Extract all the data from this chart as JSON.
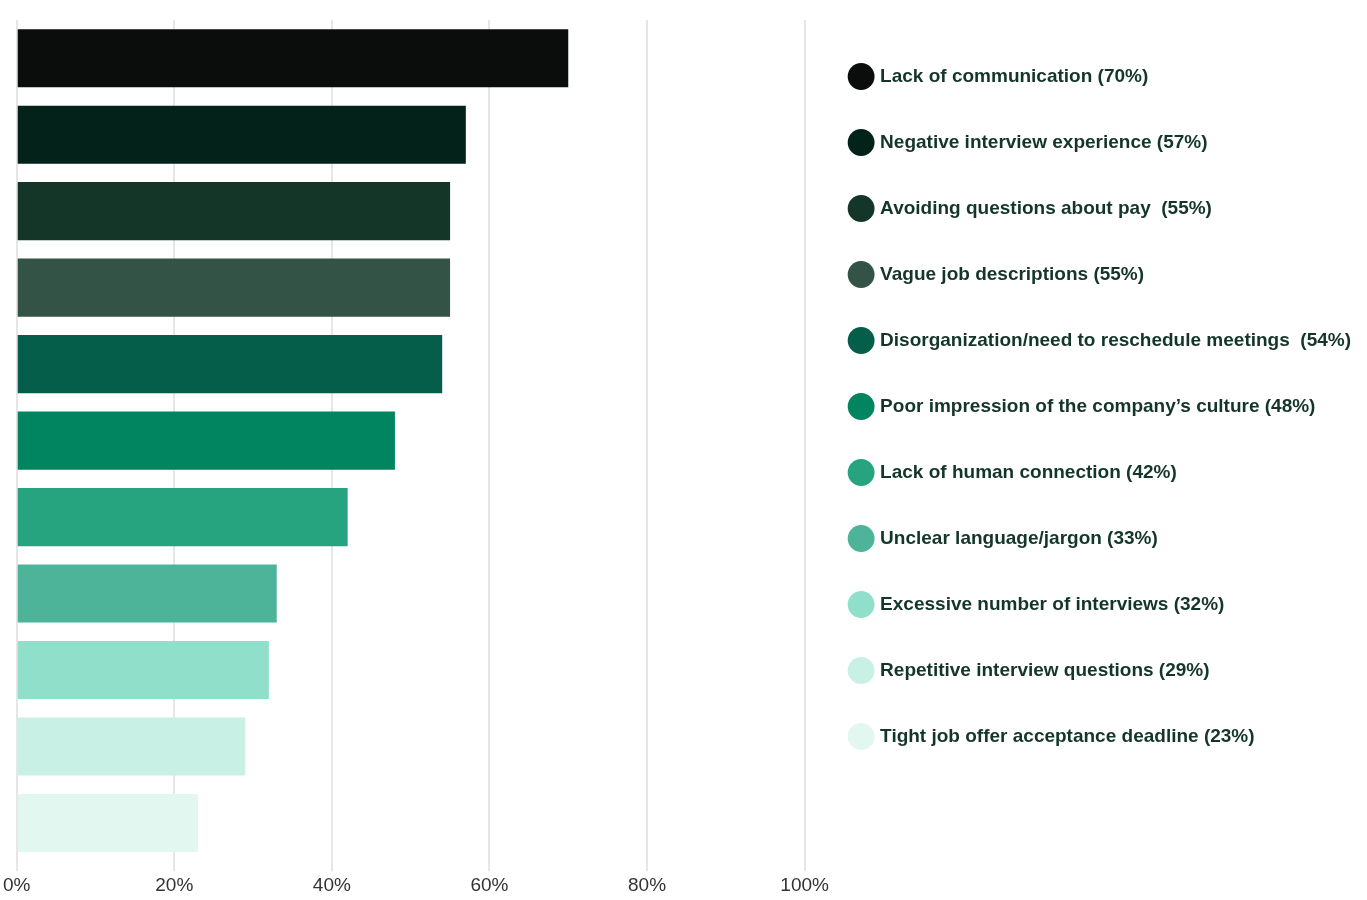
{
  "chart_data": {
    "type": "bar",
    "orientation": "horizontal",
    "stacked": true,
    "categories": [
      null,
      null,
      null,
      null,
      null,
      null,
      null,
      null,
      null,
      null,
      null
    ],
    "series": [
      {
        "name": "Lack of communication (70%)",
        "color": "#0b0d0d",
        "values": [
          70,
          null,
          null,
          null,
          null,
          null,
          null,
          null,
          null,
          null,
          null
        ]
      },
      {
        "name": "Negative interview experience (57%)",
        "color": "#03221a",
        "values": [
          null,
          57,
          null,
          null,
          null,
          null,
          null,
          null,
          null,
          null,
          null
        ]
      },
      {
        "name": "Avoiding questions about pay  (55%)",
        "color": "#143629",
        "values": [
          null,
          null,
          55,
          null,
          null,
          null,
          null,
          null,
          null,
          null,
          null
        ]
      },
      {
        "name": "Vague job descriptions (55%)",
        "color": "#335346",
        "values": [
          null,
          null,
          null,
          55,
          null,
          null,
          null,
          null,
          null,
          null,
          null
        ]
      },
      {
        "name": "Disorganization/need to reschedule meetings  (54%)",
        "color": "#055e49",
        "values": [
          null,
          null,
          null,
          null,
          54,
          null,
          null,
          null,
          null,
          null,
          null
        ]
      },
      {
        "name": "Poor impression of the company’s culture (48%)",
        "color": "#008560",
        "values": [
          null,
          null,
          null,
          null,
          null,
          48,
          null,
          null,
          null,
          null,
          null
        ]
      },
      {
        "name": "Lack of human connection (42%)",
        "color": "#25a47f",
        "values": [
          null,
          null,
          null,
          null,
          null,
          null,
          42,
          null,
          null,
          null,
          null
        ]
      },
      {
        "name": "Unclear language/jargon (33%)",
        "color": "#4db399",
        "values": [
          null,
          null,
          null,
          null,
          null,
          null,
          null,
          33,
          null,
          null,
          null
        ]
      },
      {
        "name": "Excessive number of interviews (32%)",
        "color": "#8fdfcb",
        "values": [
          null,
          null,
          null,
          null,
          null,
          null,
          null,
          null,
          32,
          null,
          null
        ]
      },
      {
        "name": "Repetitive interview questions (29%)",
        "color": "#c8f0e4",
        "values": [
          null,
          null,
          null,
          null,
          null,
          null,
          null,
          null,
          null,
          29,
          null
        ]
      },
      {
        "name": "Tight job offer acceptance deadline (23%)",
        "color": "#e3f7f1",
        "values": [
          null,
          null,
          null,
          null,
          null,
          null,
          null,
          null,
          null,
          null,
          23
        ]
      }
    ],
    "xlim": [
      0,
      100
    ],
    "xticks": [
      {
        "value": 0,
        "label": "0%"
      },
      {
        "value": 20,
        "label": "20%"
      },
      {
        "value": 40,
        "label": "40%"
      },
      {
        "value": 60,
        "label": "60%"
      },
      {
        "value": 80,
        "label": "80%"
      },
      {
        "value": 100,
        "label": "100%"
      }
    ],
    "grid": "x",
    "legend": "right",
    "tick_labels": "x"
  }
}
